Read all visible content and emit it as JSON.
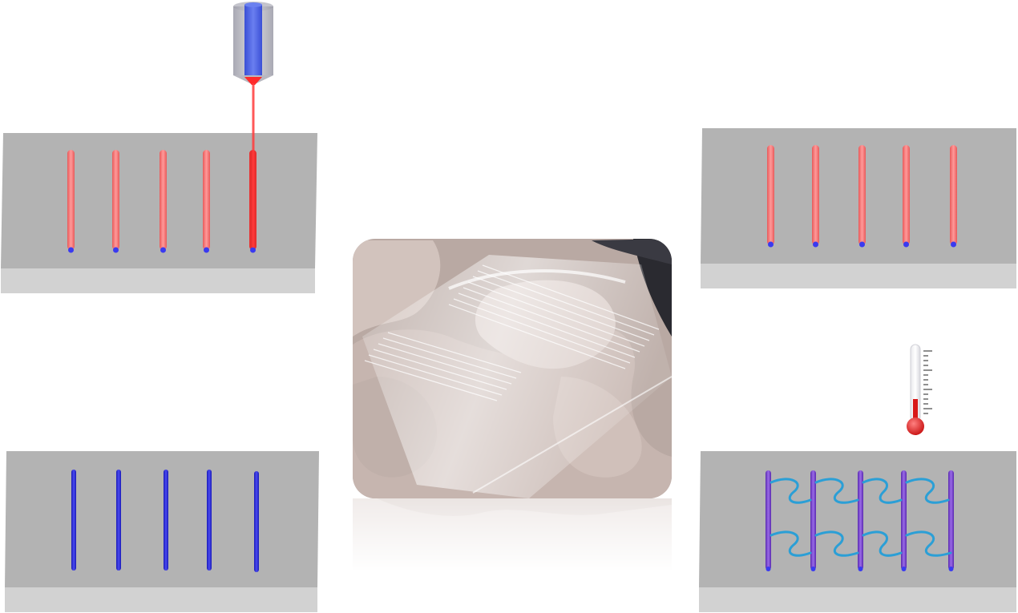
{
  "panels": [
    {
      "id": "panel-top-left",
      "channel_core_color": "#f47a7a",
      "channel_count": 5,
      "laser_writing": true
    },
    {
      "id": "panel-top-right",
      "channel_core_color": "#f47a7a",
      "channel_count": 5
    },
    {
      "id": "panel-bottom-left",
      "channel_core_color": "#2a2ad6",
      "channel_count": 5
    },
    {
      "id": "panel-bottom-right",
      "channel_core_color": "#7a3fd0",
      "channel_count": 5,
      "helix_color": "#2b9fd6",
      "helix_rows": 2
    }
  ],
  "icons": {
    "laser_nozzle": "laser-nozzle-icon",
    "thermometer": "thermometer-icon"
  },
  "colors": {
    "slab_top": "#b5b5b5",
    "slab_front": "#d3d3d3",
    "laser_beam": "#ff3b3b",
    "end_dot": "#3a3af0",
    "thermometer_bulb": "#e02020"
  }
}
